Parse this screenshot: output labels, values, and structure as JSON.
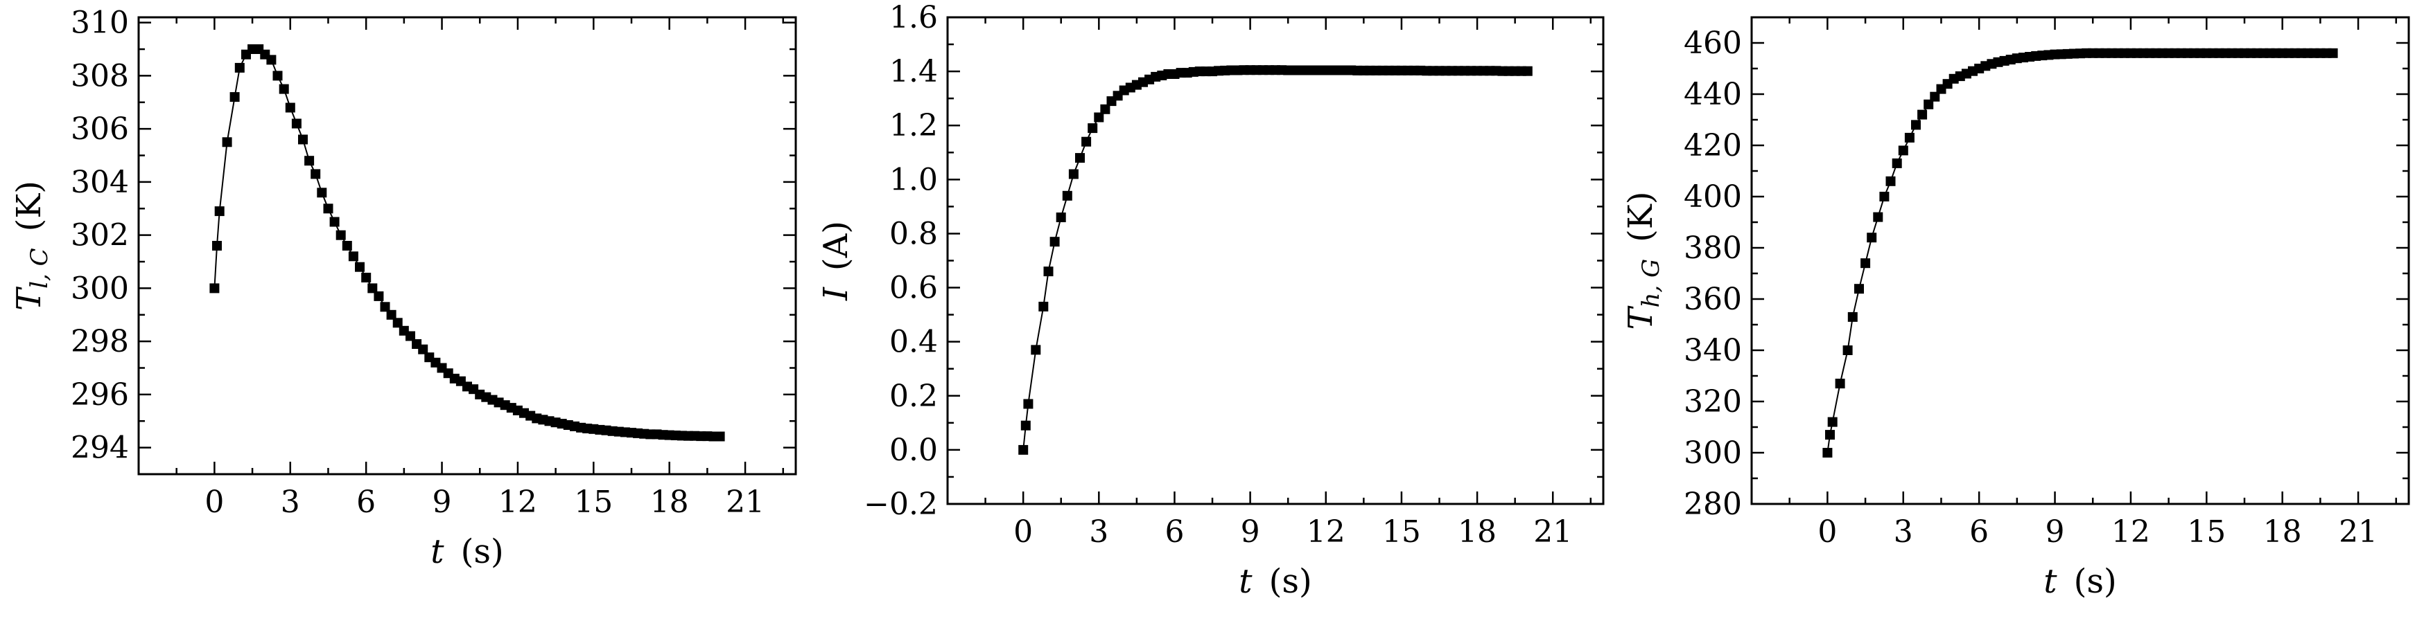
{
  "colors": {
    "background": "#ffffff",
    "axis": "#000000",
    "series": "#000000"
  },
  "chart_data": [
    {
      "type": "line",
      "marker": "square",
      "title": "",
      "xlabel": "t (s)",
      "ylabel": "T_{l,C} (K)",
      "xlabel_parts": {
        "var": "t",
        "unit": "(s)"
      },
      "ylabel_parts": {
        "var": "T",
        "sub": "l, C",
        "unit": "(K)"
      },
      "xlim": [
        -3,
        23
      ],
      "ylim": [
        293,
        310.2
      ],
      "xticks": [
        0,
        3,
        6,
        9,
        12,
        15,
        18,
        21
      ],
      "yticks": [
        294,
        296,
        298,
        300,
        302,
        304,
        306,
        308,
        310
      ],
      "xtick_labels": [
        "0",
        "3",
        "6",
        "9",
        "12",
        "15",
        "18",
        "21"
      ],
      "ytick_labels": [
        "294",
        "296",
        "298",
        "300",
        "302",
        "304",
        "306",
        "308",
        "310"
      ],
      "grid": false,
      "legend": "none",
      "series": [
        {
          "x": [
            0,
            0.1,
            0.2,
            0.5,
            0.8,
            1.0,
            1.25,
            1.5,
            1.75,
            2.0,
            2.25,
            2.5,
            2.75,
            3.0,
            3.25,
            3.5,
            3.75,
            4.0,
            4.25,
            4.5,
            4.75,
            5.0,
            5.25,
            5.5,
            5.75,
            6.0,
            6.25,
            6.5,
            6.75,
            7.0,
            7.25,
            7.5,
            7.75,
            8.0,
            8.25,
            8.5,
            8.75,
            9.0,
            9.25,
            9.5,
            9.75,
            10.0,
            10.25,
            10.5,
            10.75,
            11.0,
            11.25,
            11.5,
            11.75,
            12.0,
            12.25,
            12.5,
            12.75,
            13.0,
            13.25,
            13.5,
            13.75,
            14.0,
            14.25,
            14.5,
            14.75,
            15.0,
            15.25,
            15.5,
            15.75,
            16.0,
            16.25,
            16.5,
            16.75,
            17.0,
            17.25,
            17.5,
            17.75,
            18.0,
            18.25,
            18.5,
            18.75,
            19.0,
            19.25,
            19.5,
            19.75,
            20.0
          ],
          "y": [
            300.0,
            301.6,
            302.9,
            305.5,
            307.2,
            308.3,
            308.8,
            309.0,
            309.0,
            308.8,
            308.6,
            308.0,
            307.5,
            306.8,
            306.2,
            305.6,
            304.8,
            304.3,
            303.6,
            303.0,
            302.5,
            302.0,
            301.6,
            301.2,
            300.8,
            300.4,
            300.0,
            299.7,
            299.3,
            299.0,
            298.7,
            298.4,
            298.2,
            297.9,
            297.7,
            297.4,
            297.2,
            297.0,
            296.8,
            296.6,
            296.5,
            296.3,
            296.2,
            296.0,
            295.9,
            295.8,
            295.7,
            295.6,
            295.5,
            295.4,
            295.3,
            295.2,
            295.1,
            295.05,
            295.0,
            294.95,
            294.9,
            294.85,
            294.8,
            294.75,
            294.72,
            294.7,
            294.67,
            294.65,
            294.62,
            294.6,
            294.58,
            294.56,
            294.54,
            294.52,
            294.5,
            294.5,
            294.48,
            294.47,
            294.46,
            294.45,
            294.44,
            294.44,
            294.43,
            294.43,
            294.42,
            294.42
          ]
        }
      ]
    },
    {
      "type": "line",
      "marker": "square",
      "title": "",
      "xlabel": "t (s)",
      "ylabel": "I (A)",
      "xlabel_parts": {
        "var": "t",
        "unit": "(s)"
      },
      "ylabel_parts": {
        "var": "I",
        "sub": "",
        "unit": "(A)"
      },
      "xlim": [
        -3,
        23
      ],
      "ylim": [
        -0.2,
        1.6
      ],
      "xticks": [
        0,
        3,
        6,
        9,
        12,
        15,
        18,
        21
      ],
      "yticks": [
        -0.2,
        0.0,
        0.2,
        0.4,
        0.6,
        0.8,
        1.0,
        1.2,
        1.4,
        1.6
      ],
      "xtick_labels": [
        "0",
        "3",
        "6",
        "9",
        "12",
        "15",
        "18",
        "21"
      ],
      "ytick_labels": [
        "−0.2",
        "0.0",
        "0.2",
        "0.4",
        "0.6",
        "0.8",
        "1.0",
        "1.2",
        "1.4",
        "1.6"
      ],
      "grid": false,
      "legend": "none",
      "series": [
        {
          "x": [
            0,
            0.1,
            0.2,
            0.5,
            0.8,
            1.0,
            1.25,
            1.5,
            1.75,
            2.0,
            2.25,
            2.5,
            2.75,
            3.0,
            3.25,
            3.5,
            3.75,
            4.0,
            4.25,
            4.5,
            4.75,
            5.0,
            5.25,
            5.5,
            5.75,
            6.0,
            6.25,
            6.5,
            6.75,
            7.0,
            7.25,
            7.5,
            7.75,
            8.0,
            8.25,
            8.5,
            8.75,
            9.0,
            9.25,
            9.5,
            9.75,
            10.0,
            10.25,
            10.5,
            10.75,
            11.0,
            11.25,
            11.5,
            11.75,
            12.0,
            12.25,
            12.5,
            12.75,
            13.0,
            13.25,
            13.5,
            13.75,
            14.0,
            14.25,
            14.5,
            14.75,
            15.0,
            15.25,
            15.5,
            15.75,
            16.0,
            16.25,
            16.5,
            16.75,
            17.0,
            17.25,
            17.5,
            17.75,
            18.0,
            18.25,
            18.5,
            18.75,
            19.0,
            19.25,
            19.5,
            19.75,
            20.0
          ],
          "y": [
            0.0,
            0.09,
            0.17,
            0.37,
            0.53,
            0.66,
            0.77,
            0.86,
            0.94,
            1.02,
            1.08,
            1.14,
            1.19,
            1.23,
            1.26,
            1.29,
            1.31,
            1.33,
            1.34,
            1.35,
            1.36,
            1.37,
            1.38,
            1.385,
            1.39,
            1.39,
            1.395,
            1.395,
            1.398,
            1.4,
            1.4,
            1.4,
            1.402,
            1.403,
            1.404,
            1.404,
            1.405,
            1.405,
            1.405,
            1.405,
            1.405,
            1.405,
            1.405,
            1.404,
            1.404,
            1.404,
            1.404,
            1.404,
            1.404,
            1.404,
            1.404,
            1.404,
            1.404,
            1.404,
            1.403,
            1.403,
            1.403,
            1.403,
            1.403,
            1.403,
            1.403,
            1.403,
            1.403,
            1.403,
            1.403,
            1.402,
            1.402,
            1.402,
            1.402,
            1.402,
            1.402,
            1.402,
            1.402,
            1.402,
            1.402,
            1.402,
            1.402,
            1.401,
            1.401,
            1.401,
            1.401,
            1.401
          ]
        }
      ]
    },
    {
      "type": "line",
      "marker": "square",
      "title": "",
      "xlabel": "t (s)",
      "ylabel": "T_{h,G} (K)",
      "xlabel_parts": {
        "var": "t",
        "unit": "(s)"
      },
      "ylabel_parts": {
        "var": "T",
        "sub": "h, G",
        "unit": "(K)"
      },
      "xlim": [
        -3,
        23
      ],
      "ylim": [
        280,
        470
      ],
      "xticks": [
        0,
        3,
        6,
        9,
        12,
        15,
        18,
        21
      ],
      "yticks": [
        280,
        300,
        320,
        340,
        360,
        380,
        400,
        420,
        440,
        460
      ],
      "xtick_labels": [
        "0",
        "3",
        "6",
        "9",
        "12",
        "15",
        "18",
        "21"
      ],
      "ytick_labels": [
        "280",
        "300",
        "320",
        "340",
        "360",
        "380",
        "400",
        "420",
        "440",
        "460"
      ],
      "grid": false,
      "legend": "none",
      "series": [
        {
          "x": [
            0,
            0.1,
            0.2,
            0.5,
            0.8,
            1.0,
            1.25,
            1.5,
            1.75,
            2.0,
            2.25,
            2.5,
            2.75,
            3.0,
            3.25,
            3.5,
            3.75,
            4.0,
            4.25,
            4.5,
            4.75,
            5.0,
            5.25,
            5.5,
            5.75,
            6.0,
            6.25,
            6.5,
            6.75,
            7.0,
            7.25,
            7.5,
            7.75,
            8.0,
            8.25,
            8.5,
            8.75,
            9.0,
            9.25,
            9.5,
            9.75,
            10.0,
            10.25,
            10.5,
            10.75,
            11.0,
            11.25,
            11.5,
            11.75,
            12.0,
            12.25,
            12.5,
            12.75,
            13.0,
            13.25,
            13.5,
            13.75,
            14.0,
            14.25,
            14.5,
            14.75,
            15.0,
            15.25,
            15.5,
            15.75,
            16.0,
            16.25,
            16.5,
            16.75,
            17.0,
            17.25,
            17.5,
            17.75,
            18.0,
            18.25,
            18.5,
            18.75,
            19.0,
            19.25,
            19.5,
            19.75,
            20.0
          ],
          "y": [
            300.0,
            307.0,
            312.0,
            327.0,
            340.0,
            353.0,
            364.0,
            374.0,
            384.0,
            392.0,
            400.0,
            406.0,
            413.0,
            418.0,
            423.0,
            428.0,
            432.0,
            436.0,
            439.0,
            442.0,
            444.0,
            446.0,
            447.0,
            448.0,
            449.0,
            450.0,
            451.0,
            451.8,
            452.5,
            453.0,
            453.5,
            454.0,
            454.3,
            454.6,
            454.9,
            455.1,
            455.3,
            455.5,
            455.6,
            455.7,
            455.8,
            455.9,
            456.0,
            456.0,
            456.0,
            456.0,
            456.0,
            456.0,
            456.0,
            456.0,
            456.0,
            456.0,
            456.0,
            456.0,
            456.0,
            456.0,
            456.0,
            456.0,
            456.0,
            456.0,
            456.0,
            456.0,
            456.0,
            456.0,
            456.0,
            456.0,
            456.0,
            456.0,
            456.0,
            456.0,
            456.0,
            456.0,
            456.0,
            456.0,
            456.0,
            456.0,
            456.0,
            456.0,
            456.0,
            456.0,
            456.0,
            456.0
          ]
        }
      ]
    }
  ]
}
